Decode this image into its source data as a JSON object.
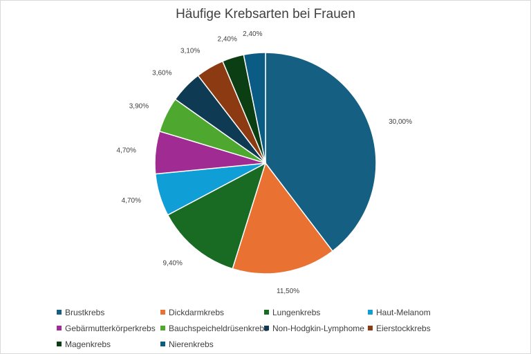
{
  "chart_data": {
    "type": "pie",
    "title": "Häufige Krebsarten bei Frauen",
    "categories": [
      "Brustkrebs",
      "Dickdarmkrebs",
      "Lungenkrebs",
      "Haut-Melanom",
      "Gebärmutterkörperkrebs",
      "Bauchspeicheldrüsenkrebs",
      "Non-Hodgkin-Lymphome",
      "Eierstockkrebs",
      "Magenkrebs",
      "Nierenkrebs"
    ],
    "values": [
      30.0,
      11.5,
      9.4,
      4.7,
      4.7,
      3.9,
      3.6,
      3.1,
      2.4,
      2.4
    ],
    "labels": [
      "30,00%",
      "11,50%",
      "9,40%",
      "4,70%",
      "4,70%",
      "3,90%",
      "3,60%",
      "3,10%",
      "2,40%",
      "2,40%"
    ],
    "colors": [
      "#156082",
      "#E97132",
      "#196B24",
      "#0F9ED5",
      "#A02B93",
      "#4EA72E",
      "#0E3A53",
      "#8B3A11",
      "#0C3E13",
      "#0A5C84"
    ],
    "legend_position": "bottom"
  }
}
